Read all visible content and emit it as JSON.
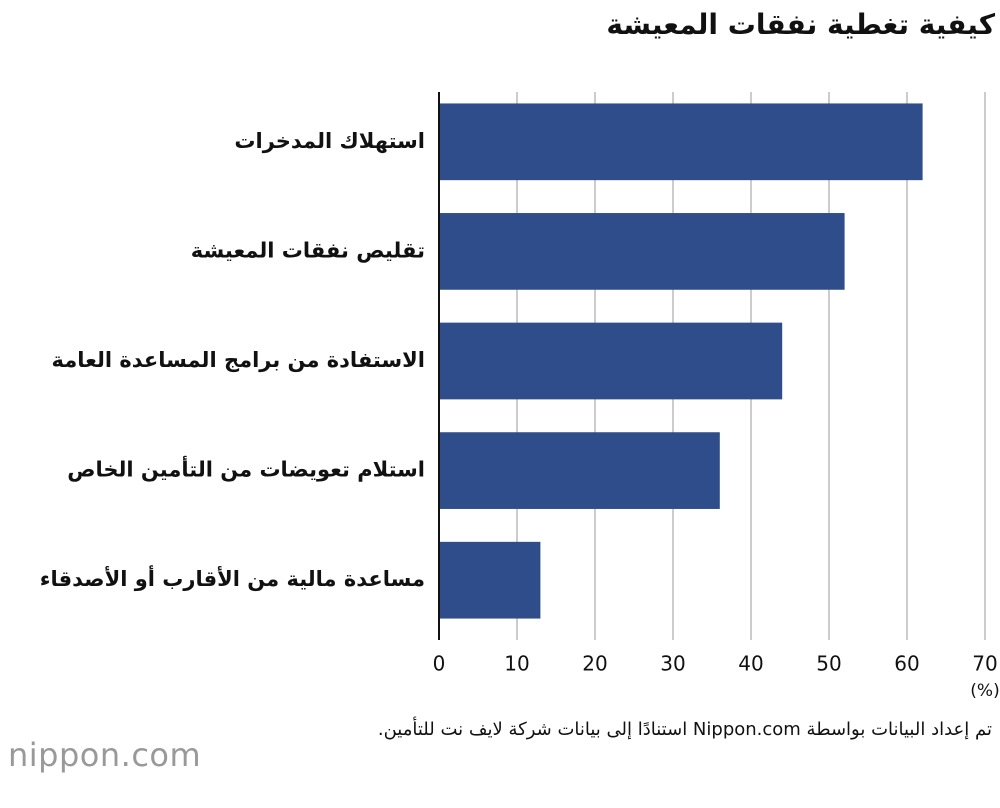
{
  "chart_data": {
    "type": "bar",
    "orientation": "horizontal",
    "title": "كيفية تغطية نفقات المعيشة",
    "categories": [
      "استهلاك المدخرات",
      "تقليص نفقات المعيشة",
      "الاستفادة من برامج المساعدة العامة",
      "استلام تعويضات من التأمين الخاص",
      "مساعدة مالية من الأقارب أو الأصدقاء"
    ],
    "values": [
      62,
      52,
      44,
      36,
      13
    ],
    "color": "#2e4d8a",
    "xlim": [
      0,
      70
    ],
    "xticks": [
      0,
      10,
      20,
      30,
      40,
      50,
      60,
      70
    ],
    "x_unit": "(%)",
    "grid": true
  },
  "footnote": "تم إعداد البيانات بواسطة Nippon.com استنادًا إلى بيانات شركة لايف نت للتأمين.",
  "logo": "nippon.com"
}
